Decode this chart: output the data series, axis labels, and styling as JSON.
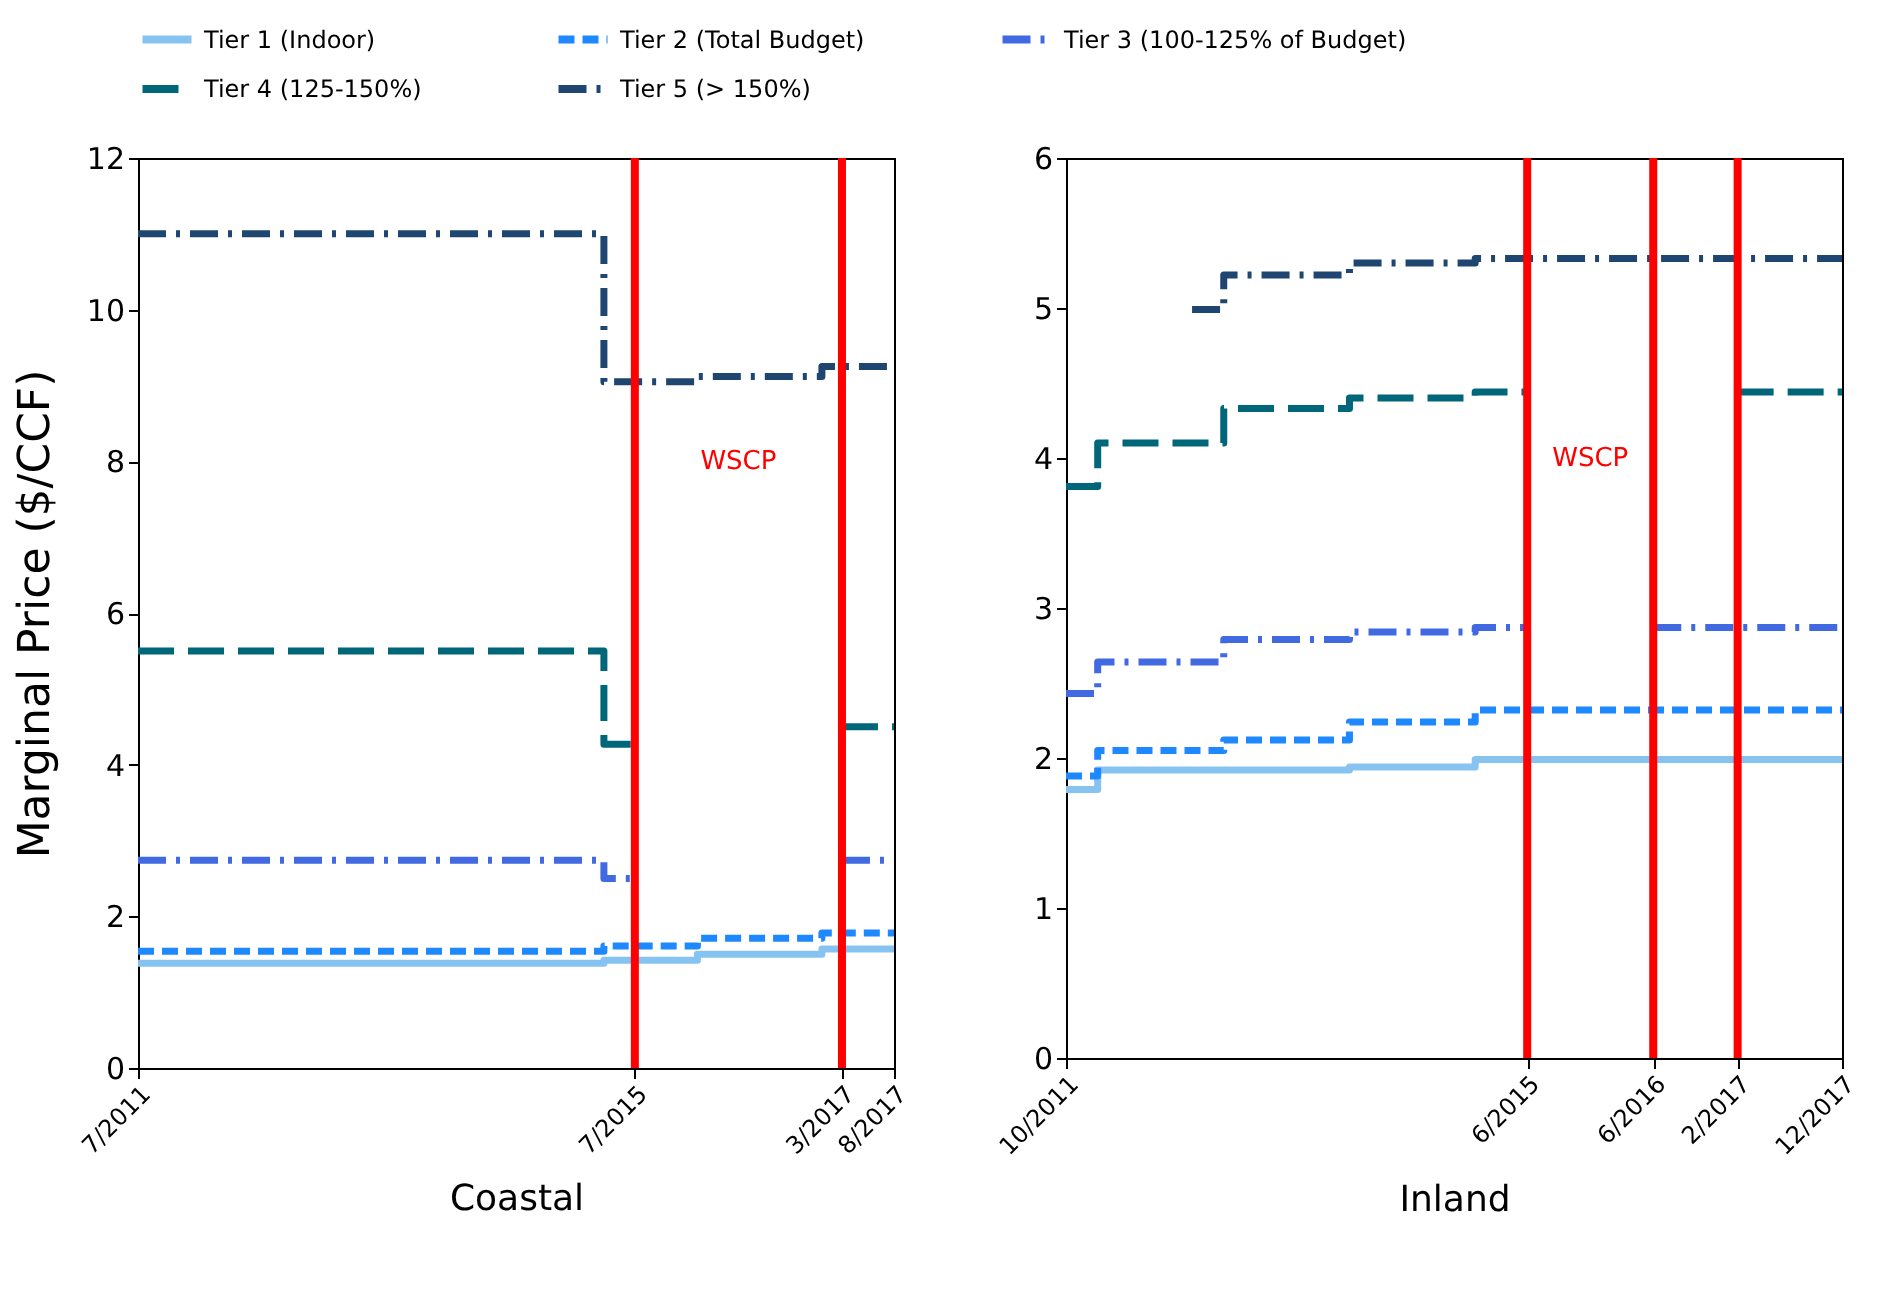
{
  "chart_data": [
    {
      "type": "step",
      "xlabel": "Coastal",
      "ylabel": "Marginal Price ($/CCF)",
      "legend": "top",
      "xlim": [
        "2011-07",
        "2017-08"
      ],
      "xticks": [
        {
          "value": "2011-07",
          "label": "7/2011"
        },
        {
          "value": "2015-07",
          "label": "7/2015"
        },
        {
          "value": "2017-03",
          "label": "3/2017"
        },
        {
          "value": "2017-08",
          "label": "8/2017"
        }
      ],
      "ylim": [
        0,
        12
      ],
      "yticks": [
        0,
        2,
        4,
        6,
        8,
        10,
        12
      ],
      "grid": false,
      "series": [
        {
          "name": "Tier 1 (Indoor)",
          "color": "#87c3f0",
          "line_style": "solid",
          "x": [
            "2011-07",
            "2015-04",
            "2016-01",
            "2017-01",
            "2017-08"
          ],
          "values": [
            1.38,
            1.42,
            1.5,
            1.57,
            1.57
          ]
        },
        {
          "name": "Tier 2 (Total Budget)",
          "color": "#1e88ff",
          "line_style": "dashed",
          "x": [
            "2011-07",
            "2015-04",
            "2016-01",
            "2017-01",
            "2017-08"
          ],
          "values": [
            1.54,
            1.61,
            1.71,
            1.78,
            1.78
          ]
        },
        {
          "name": "Tier 3 (100-125% of Budget)",
          "color": "#4169e1",
          "line_style": "dashdot",
          "x": [
            "2011-07",
            "2015-04",
            "2015-07",
            "2016-01",
            "2017-03",
            "2017-08"
          ],
          "values": [
            2.74,
            2.5,
            2.5,
            null,
            2.74,
            2.74
          ]
        },
        {
          "name": "Tier 4 (125-150%)",
          "color": "#00677a",
          "line_style": "longdash",
          "x": [
            "2011-07",
            "2015-04",
            "2015-07",
            "2016-01",
            "2017-03",
            "2017-08"
          ],
          "values": [
            5.5,
            4.27,
            4.27,
            null,
            4.5,
            4.5
          ]
        },
        {
          "name": "Tier 5 (> 150%)",
          "color": "#1f4670",
          "line_style": "dashdot",
          "x": [
            "2011-07",
            "2015-04",
            "2016-01",
            "2017-01",
            "2017-08"
          ],
          "values": [
            11.0,
            9.05,
            9.12,
            9.25,
            9.25
          ]
        }
      ],
      "ref_lines": [
        {
          "axis": "x",
          "value": "2015-07",
          "color": "#ff0000"
        },
        {
          "axis": "x",
          "value": "2017-03",
          "color": "#ff0000"
        }
      ],
      "annotations": [
        "WSCP"
      ]
    },
    {
      "type": "step",
      "xlabel": "Inland",
      "legend": "top",
      "xlim": [
        "2011-10",
        "2017-12"
      ],
      "xticks": [
        {
          "value": "2011-10",
          "label": "10/2011"
        },
        {
          "value": "2015-06",
          "label": "6/2015"
        },
        {
          "value": "2016-06",
          "label": "6/2016"
        },
        {
          "value": "2017-02",
          "label": "2/2017"
        },
        {
          "value": "2017-12",
          "label": "12/2017"
        }
      ],
      "ylim": [
        0,
        6
      ],
      "yticks": [
        0,
        1,
        2,
        3,
        4,
        5,
        6
      ],
      "grid": false,
      "series": [
        {
          "name": "Tier 1 (Indoor)",
          "color": "#87c3f0",
          "line_style": "solid",
          "x": [
            "2011-10",
            "2012-01",
            "2014-01",
            "2015-01",
            "2017-12"
          ],
          "values": [
            1.79,
            1.92,
            1.94,
            1.99,
            1.99
          ]
        },
        {
          "name": "Tier 2 (Total Budget)",
          "color": "#1e88ff",
          "line_style": "dashed",
          "x": [
            "2011-10",
            "2012-01",
            "2013-01",
            "2014-01",
            "2015-01",
            "2017-12"
          ],
          "values": [
            1.88,
            2.05,
            2.12,
            2.24,
            2.32,
            2.32
          ]
        },
        {
          "name": "Tier 3 (100-125% of Budget)",
          "color": "#4169e1",
          "line_style": "dashdot",
          "x": [
            "2011-10",
            "2012-01",
            "2013-01",
            "2014-01",
            "2015-01",
            "2015-06",
            "2015-12",
            "2016-06",
            "2017-12"
          ],
          "values": [
            2.43,
            2.64,
            2.79,
            2.84,
            2.87,
            2.87,
            null,
            2.87,
            2.87
          ]
        },
        {
          "name": "Tier 4 (125-150%)",
          "color": "#00677a",
          "line_style": "longdash",
          "x": [
            "2011-10",
            "2012-01",
            "2013-01",
            "2014-01",
            "2015-01",
            "2015-06",
            "2016-08",
            "2017-02",
            "2017-12"
          ],
          "values": [
            3.81,
            4.1,
            4.33,
            4.4,
            4.44,
            4.44,
            null,
            4.44,
            4.44
          ]
        },
        {
          "name": "Tier 5 (> 150%)",
          "color": "#1f4670",
          "line_style": "dashdot",
          "x": [
            "2012-10",
            "2013-01",
            "2014-01",
            "2015-01",
            "2017-12"
          ],
          "values": [
            4.99,
            5.22,
            5.3,
            5.33,
            5.33
          ]
        }
      ],
      "ref_lines": [
        {
          "axis": "x",
          "value": "2015-06",
          "color": "#ff0000"
        },
        {
          "axis": "x",
          "value": "2016-06",
          "color": "#ff0000"
        },
        {
          "axis": "x",
          "value": "2017-02",
          "color": "#ff0000"
        }
      ],
      "annotations": [
        "WSCP"
      ]
    }
  ]
}
